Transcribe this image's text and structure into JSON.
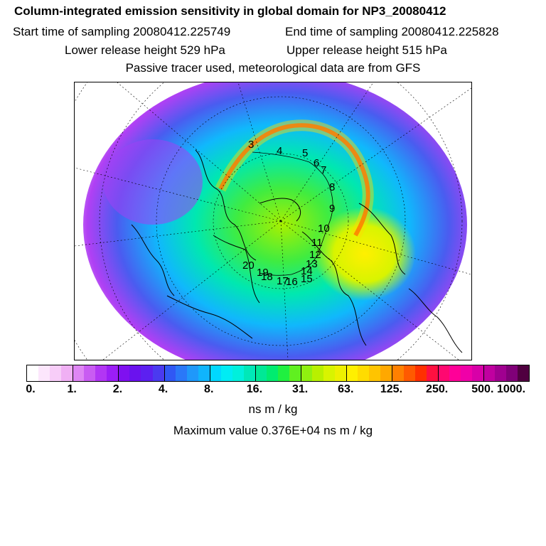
{
  "header": {
    "title": "Column-integrated emission sensitivity in global domain for NP3_20080412",
    "start_label": "Start time of sampling 20080412.225749",
    "end_label": "End time of sampling 20080412.225828",
    "lower_label": "Lower release height  529 hPa",
    "upper_label": "Upper release height  515 hPa",
    "note": "Passive tracer used, meteorological data are from GFS"
  },
  "colorbar": {
    "labels": [
      "0.",
      "1.",
      "2.",
      "4.",
      "8.",
      "16.",
      "31.",
      "63.",
      "125.",
      "250.",
      "500.",
      "1000."
    ],
    "colors": [
      "#ffffff",
      "#fce6fc",
      "#f7cdf8",
      "#f0b0f4",
      "#df86f4",
      "#c95cf2",
      "#b236f4",
      "#9b1ef6",
      "#7f10f0",
      "#6a12ee",
      "#5c20f0",
      "#4a3af0",
      "#3058f4",
      "#2a78f8",
      "#1f98fa",
      "#10b4fc",
      "#00d8ff",
      "#00ecf4",
      "#00f0dc",
      "#00e8b8",
      "#00e896",
      "#00ec70",
      "#20f040",
      "#60f020",
      "#90f010",
      "#b8f000",
      "#d8f400",
      "#eef000",
      "#fff000",
      "#ffdc00",
      "#ffc400",
      "#ffa800",
      "#ff8000",
      "#ff5a00",
      "#ff3000",
      "#ff1040",
      "#ff0870",
      "#ff0098",
      "#f000a8",
      "#d800a8",
      "#c000a0",
      "#a00090",
      "#800078",
      "#500040"
    ],
    "units": "ns m / kg",
    "max_value_text": "Maximum value  0.376E+04 ns m / kg"
  },
  "map": {
    "trajectory_labels": [
      "3",
      "4",
      "5",
      "6",
      "7",
      "8",
      "9",
      "10",
      "11",
      "12",
      "13",
      "14",
      "15",
      "16",
      "17",
      "18",
      "19",
      "20"
    ]
  }
}
